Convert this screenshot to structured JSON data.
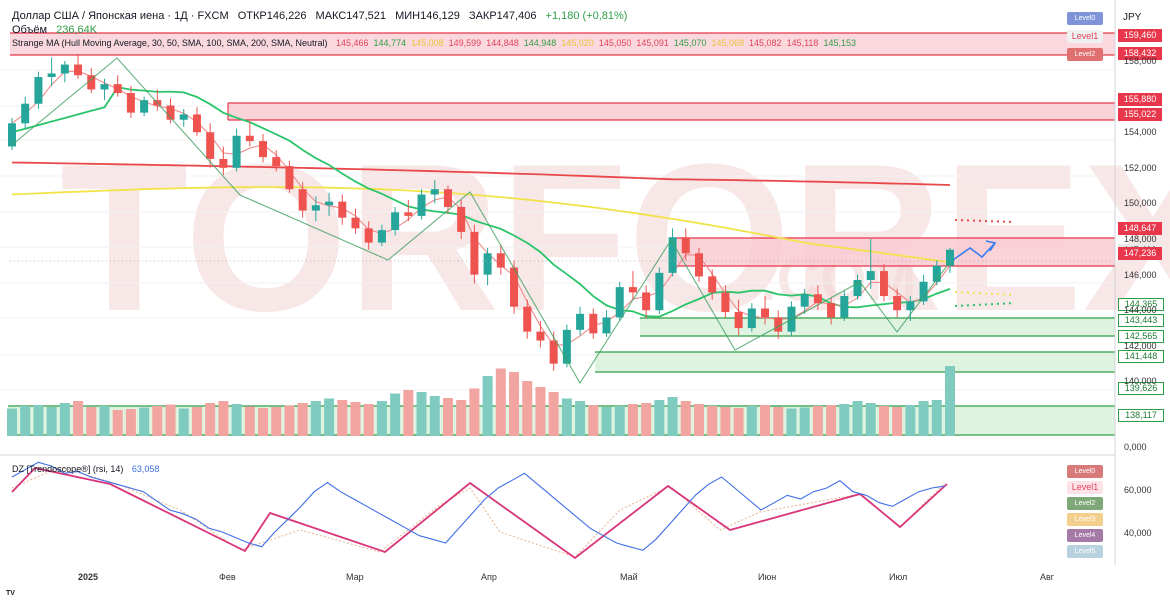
{
  "header": {
    "symbol": "Доллар США / Японская иена · 1Д · FXCM",
    "open": "ОТКР146,226",
    "high": "МАКС147,521",
    "low": "МИН146,129",
    "close": "ЗАКР147,406",
    "change": "+1,180 (+0,81%)",
    "volume_label": "Объём",
    "volume_value": "236,64K",
    "indicator_label": "Strange MA (Hull Moving Average, 30, 50, SMA, 100, SMA, 200, SMA, Neutral)",
    "indicator_values": [
      "145,466",
      "144,774",
      "145,008",
      "149,599",
      "144,848",
      "144,948",
      "145,020",
      "145,050",
      "145,091",
      "145,070",
      "145,069",
      "145,082",
      "145,118",
      "145,153"
    ],
    "currency": "JPY"
  },
  "rsi_header": {
    "label": "DZ [Trendoscope®] (rsi, 14)",
    "value": "63,058"
  },
  "main_levels": [
    {
      "label": "Level0",
      "color": "#7e93d8"
    },
    {
      "label": "Level1",
      "color": "#f0f0f0"
    },
    {
      "label": "Level2",
      "color": "#e07070"
    }
  ],
  "rsi_levels": [
    {
      "label": "Level0",
      "color": "#d97a7a"
    },
    {
      "label": "Level1",
      "color": "#fde3e8"
    },
    {
      "label": "Level2",
      "color": "#7ea877"
    },
    {
      "label": "Level3",
      "color": "#f3cf8d"
    },
    {
      "label": "Level4",
      "color": "#a57aa7"
    },
    {
      "label": "Level5",
      "color": "#b9d2e0"
    }
  ],
  "price_labels": [
    {
      "value": "159,460",
      "kind": "red"
    },
    {
      "value": "158,432",
      "kind": "red"
    },
    {
      "value": "155,880",
      "kind": "red"
    },
    {
      "value": "155,022",
      "kind": "red"
    },
    {
      "value": "148,647",
      "kind": "red"
    },
    {
      "value": "147,406",
      "kind": "gray"
    },
    {
      "value": "147,236",
      "kind": "red"
    },
    {
      "value": "144,365",
      "kind": "green"
    },
    {
      "value": "143,443",
      "kind": "green"
    },
    {
      "value": "142,565",
      "kind": "green"
    },
    {
      "value": "141,448",
      "kind": "green"
    },
    {
      "value": "139,626",
      "kind": "green"
    },
    {
      "value": "138,117",
      "kind": "green"
    }
  ],
  "y_ticks": [
    "158,000",
    "154,000",
    "152,000",
    "150,000",
    "148,000",
    "146,000",
    "144,000",
    "142,000",
    "140,000",
    "0,000"
  ],
  "rsi_ticks": [
    "60,000",
    "40,000"
  ],
  "x_ticks": [
    "2025",
    "Фев",
    "Мар",
    "Апр",
    "Май",
    "Июн",
    "Июл",
    "Авг"
  ],
  "chart_data": {
    "type": "candlestick",
    "price_range": [
      138,
      160
    ],
    "prices_ohlc_approx": [
      [
        153.2,
        154.8,
        153.0,
        154.5
      ],
      [
        154.5,
        156.0,
        154.2,
        155.6
      ],
      [
        155.6,
        157.4,
        155.3,
        157.1
      ],
      [
        157.1,
        158.2,
        156.6,
        157.3
      ],
      [
        157.3,
        158.0,
        156.8,
        157.8
      ],
      [
        157.8,
        158.4,
        157.0,
        157.2
      ],
      [
        157.2,
        157.6,
        156.2,
        156.4
      ],
      [
        156.4,
        157.0,
        155.8,
        156.7
      ],
      [
        156.7,
        157.2,
        156.0,
        156.2
      ],
      [
        156.2,
        156.6,
        154.8,
        155.1
      ],
      [
        155.1,
        156.0,
        154.9,
        155.8
      ],
      [
        155.8,
        156.4,
        155.2,
        155.5
      ],
      [
        155.5,
        155.9,
        154.5,
        154.7
      ],
      [
        154.7,
        155.3,
        154.3,
        155.0
      ],
      [
        155.0,
        155.4,
        153.8,
        154.0
      ],
      [
        154.0,
        154.5,
        152.0,
        152.5
      ],
      [
        152.5,
        153.2,
        151.6,
        152.0
      ],
      [
        152.0,
        154.2,
        151.8,
        153.8
      ],
      [
        153.8,
        154.6,
        153.2,
        153.5
      ],
      [
        153.5,
        153.9,
        152.3,
        152.6
      ],
      [
        152.6,
        153.0,
        151.8,
        152.1
      ],
      [
        152.1,
        152.4,
        150.6,
        150.8
      ],
      [
        150.8,
        151.2,
        149.2,
        149.6
      ],
      [
        149.6,
        150.4,
        149.0,
        149.9
      ],
      [
        149.9,
        150.6,
        149.3,
        150.1
      ],
      [
        150.1,
        150.5,
        148.8,
        149.2
      ],
      [
        149.2,
        149.7,
        148.3,
        148.6
      ],
      [
        148.6,
        149.0,
        147.4,
        147.8
      ],
      [
        147.8,
        148.8,
        147.6,
        148.5
      ],
      [
        148.5,
        149.8,
        148.2,
        149.5
      ],
      [
        149.5,
        150.2,
        149.0,
        149.3
      ],
      [
        149.3,
        150.8,
        149.1,
        150.5
      ],
      [
        150.5,
        151.3,
        150.0,
        150.8
      ],
      [
        150.8,
        151.0,
        149.4,
        149.8
      ],
      [
        149.8,
        150.2,
        148.0,
        148.4
      ],
      [
        148.4,
        148.8,
        145.5,
        146.0
      ],
      [
        146.0,
        147.5,
        145.4,
        147.2
      ],
      [
        147.2,
        147.7,
        146.0,
        146.4
      ],
      [
        146.4,
        146.8,
        143.8,
        144.2
      ],
      [
        144.2,
        144.6,
        142.4,
        142.8
      ],
      [
        142.8,
        143.4,
        141.9,
        142.3
      ],
      [
        142.3,
        142.8,
        140.6,
        141.0
      ],
      [
        141.0,
        143.2,
        140.8,
        142.9
      ],
      [
        142.9,
        144.2,
        142.6,
        143.8
      ],
      [
        143.8,
        144.1,
        142.4,
        142.7
      ],
      [
        142.7,
        144.0,
        142.5,
        143.6
      ],
      [
        143.6,
        145.6,
        143.4,
        145.3
      ],
      [
        145.3,
        146.2,
        144.6,
        145.0
      ],
      [
        145.0,
        145.4,
        143.6,
        144.0
      ],
      [
        144.0,
        146.4,
        143.8,
        146.1
      ],
      [
        146.1,
        148.6,
        145.9,
        148.1
      ],
      [
        148.1,
        148.6,
        146.8,
        147.2
      ],
      [
        147.2,
        147.5,
        145.6,
        145.9
      ],
      [
        145.9,
        146.3,
        144.6,
        145.0
      ],
      [
        145.0,
        145.4,
        143.6,
        143.9
      ],
      [
        143.9,
        144.6,
        142.6,
        143.0
      ],
      [
        143.0,
        144.4,
        142.8,
        144.1
      ],
      [
        144.1,
        144.8,
        143.2,
        143.6
      ],
      [
        143.6,
        144.0,
        142.4,
        142.8
      ],
      [
        142.8,
        144.5,
        142.6,
        144.2
      ],
      [
        144.2,
        145.2,
        143.8,
        144.9
      ],
      [
        144.9,
        145.4,
        144.0,
        144.4
      ],
      [
        144.4,
        144.7,
        143.2,
        143.6
      ],
      [
        143.6,
        145.1,
        143.4,
        144.8
      ],
      [
        144.8,
        146.0,
        144.6,
        145.7
      ],
      [
        145.7,
        148.0,
        145.2,
        146.2
      ],
      [
        146.2,
        146.6,
        144.5,
        144.8
      ],
      [
        144.8,
        145.2,
        143.6,
        144.0
      ],
      [
        144.0,
        144.8,
        143.4,
        144.5
      ],
      [
        144.5,
        146.0,
        144.3,
        145.6
      ],
      [
        145.6,
        146.8,
        145.4,
        146.5
      ],
      [
        146.5,
        147.5,
        146.1,
        147.4
      ]
    ],
    "volume_approx": [
      55,
      60,
      62,
      58,
      66,
      70,
      58,
      60,
      52,
      54,
      57,
      60,
      63,
      55,
      58,
      66,
      70,
      64,
      59,
      56,
      58,
      61,
      66,
      70,
      75,
      72,
      68,
      64,
      70,
      85,
      92,
      88,
      80,
      76,
      72,
      95,
      120,
      135,
      128,
      110,
      98,
      88,
      75,
      70,
      62,
      58,
      60,
      64,
      66,
      72,
      78,
      70,
      64,
      60,
      58,
      56,
      60,
      62,
      58,
      55,
      57,
      60,
      62,
      64,
      70,
      66,
      60,
      58,
      62,
      70,
      72,
      236
    ],
    "hull_ma_30": "red line, approx 145,466 at end",
    "sma_50": "green line, approx 144,774 at end",
    "sma_100": "yellow line, approx 145,008 at end",
    "sma_200": "red line, approx 149,599 at end",
    "resistance_zones": [
      [
        158.432,
        159.46
      ],
      [
        155.022,
        155.88
      ],
      [
        147.236,
        148.647
      ]
    ],
    "support_zones": [
      [
        143.443,
        144.365
      ],
      [
        141.448,
        142.565
      ],
      [
        138.117,
        139.626
      ]
    ],
    "rsi_range": [
      20,
      80
    ],
    "rsi_approx": [
      68,
      72,
      76,
      74,
      70,
      71,
      68,
      66,
      64,
      62,
      60,
      55,
      50,
      48,
      45,
      40,
      38,
      35,
      32,
      30,
      38,
      45,
      52,
      60,
      65,
      60,
      56,
      52,
      48,
      44,
      40,
      36,
      34,
      32,
      40,
      48,
      56,
      62,
      66,
      70,
      64,
      58,
      52,
      46,
      40,
      36,
      32,
      30,
      28,
      34,
      42,
      50,
      58,
      64,
      68,
      62,
      56,
      50,
      54,
      58,
      56,
      60,
      62,
      66,
      60,
      58,
      54,
      52,
      56,
      60,
      62,
      63.058
    ]
  }
}
